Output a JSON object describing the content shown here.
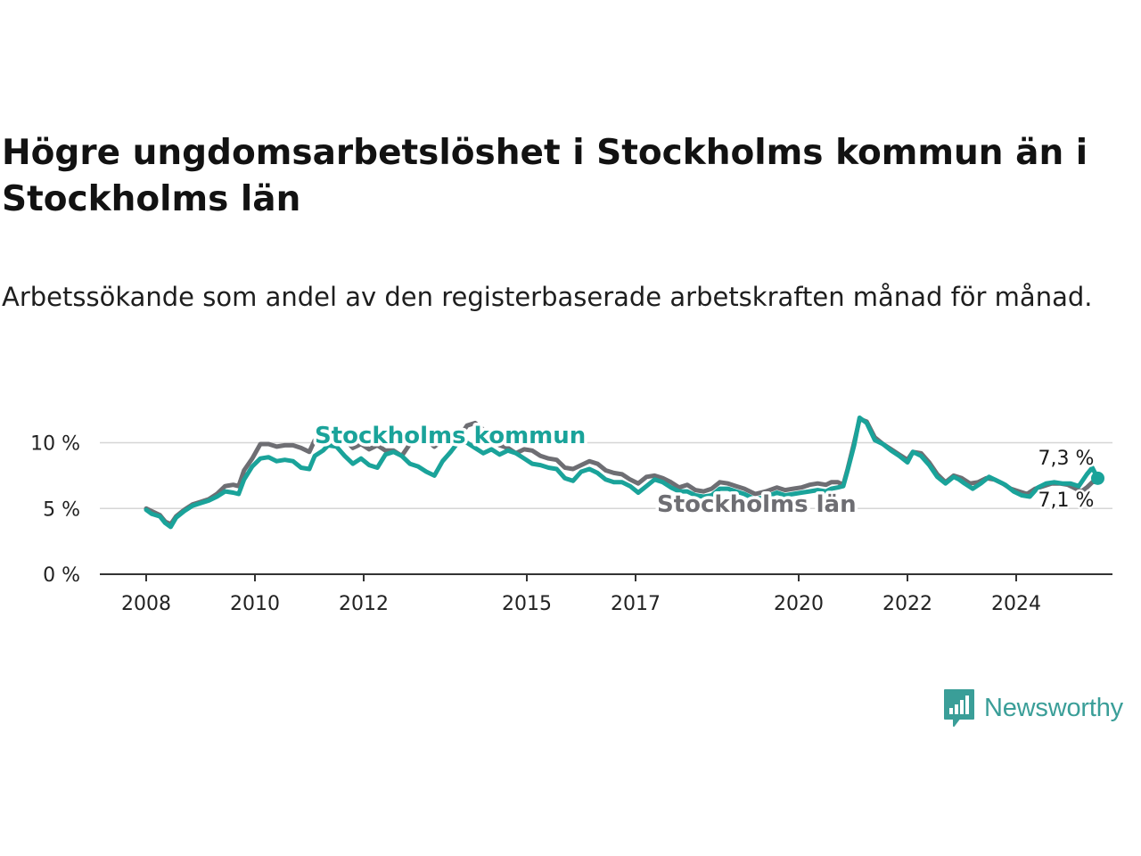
{
  "title": "Högre ungdomsarbetslöshet i Stockholms kommun än i Stockholms län",
  "subtitle": "Arbetssökande som andel av den registerbaserade arbetskraften månad för månad.",
  "brand": {
    "name": "Newsworthy",
    "icon": "newsworthy-bar-chart-icon"
  },
  "chart_data": {
    "type": "line",
    "title": "Högre ungdomsarbetslöshet i Stockholms kommun än i Stockholms län",
    "subtitle": "Arbetssökande som andel av den registerbaserade arbetskraften månad för månad.",
    "xlabel": "",
    "ylabel": "",
    "x_range": [
      2008,
      2025.5
    ],
    "ylim": [
      0,
      12.5
    ],
    "grid": true,
    "x_ticks": [
      {
        "value": 2008,
        "label": "2008"
      },
      {
        "value": 2010,
        "label": "2010"
      },
      {
        "value": 2012,
        "label": "2012"
      },
      {
        "value": 2015,
        "label": "2015"
      },
      {
        "value": 2017,
        "label": "2017"
      },
      {
        "value": 2020,
        "label": "2020"
      },
      {
        "value": 2022,
        "label": "2022"
      },
      {
        "value": 2024,
        "label": "2024"
      }
    ],
    "y_ticks": [
      {
        "value": 0,
        "label": "0 %"
      },
      {
        "value": 5,
        "label": "5 %"
      },
      {
        "value": 10,
        "label": "10 %"
      }
    ],
    "series": [
      {
        "name": "Stockholms län",
        "color": "#6e6e73",
        "last_label": "7,1 %",
        "points": [
          [
            2008.0,
            5.0
          ],
          [
            2008.1,
            4.8
          ],
          [
            2008.25,
            4.5
          ],
          [
            2008.35,
            4.0
          ],
          [
            2008.45,
            3.8
          ],
          [
            2008.55,
            4.4
          ],
          [
            2008.7,
            4.9
          ],
          [
            2008.85,
            5.3
          ],
          [
            2009.0,
            5.5
          ],
          [
            2009.15,
            5.7
          ],
          [
            2009.3,
            6.1
          ],
          [
            2009.45,
            6.7
          ],
          [
            2009.6,
            6.8
          ],
          [
            2009.7,
            6.7
          ],
          [
            2009.8,
            7.9
          ],
          [
            2009.95,
            8.8
          ],
          [
            2010.1,
            9.9
          ],
          [
            2010.25,
            9.9
          ],
          [
            2010.4,
            9.7
          ],
          [
            2010.55,
            9.8
          ],
          [
            2010.7,
            9.8
          ],
          [
            2010.85,
            9.6
          ],
          [
            2011.0,
            9.3
          ],
          [
            2011.1,
            10.2
          ],
          [
            2011.25,
            10.4
          ],
          [
            2011.35,
            10.8
          ],
          [
            2011.5,
            10.8
          ],
          [
            2011.65,
            10.3
          ],
          [
            2011.8,
            9.6
          ],
          [
            2011.95,
            9.9
          ],
          [
            2012.1,
            9.5
          ],
          [
            2012.25,
            9.8
          ],
          [
            2012.4,
            9.4
          ],
          [
            2012.55,
            9.4
          ],
          [
            2012.7,
            9.0
          ],
          [
            2012.85,
            9.9
          ],
          [
            2013.0,
            10.3
          ],
          [
            2013.15,
            10.2
          ],
          [
            2013.3,
            9.7
          ],
          [
            2013.45,
            10.2
          ],
          [
            2013.6,
            10.1
          ],
          [
            2013.75,
            10.4
          ],
          [
            2013.9,
            11.3
          ],
          [
            2014.05,
            11.5
          ],
          [
            2014.2,
            11.0
          ],
          [
            2014.35,
            10.6
          ],
          [
            2014.5,
            9.8
          ],
          [
            2014.65,
            9.6
          ],
          [
            2014.8,
            9.2
          ],
          [
            2014.95,
            9.5
          ],
          [
            2015.1,
            9.4
          ],
          [
            2015.25,
            9.0
          ],
          [
            2015.4,
            8.8
          ],
          [
            2015.55,
            8.7
          ],
          [
            2015.7,
            8.1
          ],
          [
            2015.85,
            8.0
          ],
          [
            2016.0,
            8.3
          ],
          [
            2016.15,
            8.6
          ],
          [
            2016.3,
            8.4
          ],
          [
            2016.45,
            7.9
          ],
          [
            2016.6,
            7.7
          ],
          [
            2016.75,
            7.6
          ],
          [
            2016.9,
            7.2
          ],
          [
            2017.05,
            6.9
          ],
          [
            2017.2,
            7.4
          ],
          [
            2017.35,
            7.5
          ],
          [
            2017.5,
            7.3
          ],
          [
            2017.65,
            7.0
          ],
          [
            2017.8,
            6.6
          ],
          [
            2017.95,
            6.8
          ],
          [
            2018.1,
            6.4
          ],
          [
            2018.25,
            6.3
          ],
          [
            2018.4,
            6.5
          ],
          [
            2018.55,
            7.0
          ],
          [
            2018.7,
            6.9
          ],
          [
            2018.85,
            6.7
          ],
          [
            2019.0,
            6.5
          ],
          [
            2019.2,
            6.1
          ],
          [
            2019.4,
            6.3
          ],
          [
            2019.6,
            6.6
          ],
          [
            2019.75,
            6.4
          ],
          [
            2019.9,
            6.5
          ],
          [
            2020.05,
            6.6
          ],
          [
            2020.2,
            6.8
          ],
          [
            2020.35,
            6.9
          ],
          [
            2020.5,
            6.8
          ],
          [
            2020.6,
            7.0
          ],
          [
            2020.72,
            7.0
          ],
          [
            2020.82,
            6.8
          ],
          [
            2020.9,
            8.0
          ],
          [
            2021.02,
            10.0
          ],
          [
            2021.12,
            11.8
          ],
          [
            2021.25,
            11.6
          ],
          [
            2021.4,
            10.4
          ],
          [
            2021.55,
            9.9
          ],
          [
            2021.7,
            9.5
          ],
          [
            2021.85,
            9.1
          ],
          [
            2022.0,
            8.7
          ],
          [
            2022.1,
            9.3
          ],
          [
            2022.25,
            9.2
          ],
          [
            2022.4,
            8.5
          ],
          [
            2022.55,
            7.6
          ],
          [
            2022.7,
            7.0
          ],
          [
            2022.85,
            7.5
          ],
          [
            2023.0,
            7.3
          ],
          [
            2023.15,
            6.9
          ],
          [
            2023.3,
            7.0
          ],
          [
            2023.45,
            7.3
          ],
          [
            2023.6,
            7.2
          ],
          [
            2023.75,
            6.9
          ],
          [
            2023.9,
            6.5
          ],
          [
            2024.05,
            6.3
          ],
          [
            2024.2,
            6.1
          ],
          [
            2024.35,
            6.5
          ],
          [
            2024.5,
            6.7
          ],
          [
            2024.65,
            6.9
          ],
          [
            2024.8,
            6.9
          ],
          [
            2024.95,
            6.8
          ],
          [
            2025.1,
            6.5
          ],
          [
            2025.2,
            6.3
          ],
          [
            2025.3,
            6.6
          ],
          [
            2025.4,
            7.0
          ],
          [
            2025.5,
            7.1
          ]
        ]
      },
      {
        "name": "Stockholms kommun",
        "color": "#1aa39a",
        "last_label": "7,3 %",
        "points": [
          [
            2008.0,
            4.9
          ],
          [
            2008.1,
            4.6
          ],
          [
            2008.25,
            4.4
          ],
          [
            2008.35,
            3.9
          ],
          [
            2008.45,
            3.6
          ],
          [
            2008.55,
            4.3
          ],
          [
            2008.7,
            4.8
          ],
          [
            2008.85,
            5.2
          ],
          [
            2009.0,
            5.4
          ],
          [
            2009.15,
            5.6
          ],
          [
            2009.3,
            5.9
          ],
          [
            2009.45,
            6.3
          ],
          [
            2009.6,
            6.2
          ],
          [
            2009.7,
            6.1
          ],
          [
            2009.8,
            7.2
          ],
          [
            2009.95,
            8.2
          ],
          [
            2010.1,
            8.8
          ],
          [
            2010.25,
            8.9
          ],
          [
            2010.4,
            8.6
          ],
          [
            2010.55,
            8.7
          ],
          [
            2010.7,
            8.6
          ],
          [
            2010.85,
            8.1
          ],
          [
            2011.0,
            8.0
          ],
          [
            2011.1,
            9.0
          ],
          [
            2011.25,
            9.4
          ],
          [
            2011.35,
            9.8
          ],
          [
            2011.5,
            9.7
          ],
          [
            2011.65,
            9.0
          ],
          [
            2011.8,
            8.4
          ],
          [
            2011.95,
            8.8
          ],
          [
            2012.1,
            8.3
          ],
          [
            2012.25,
            8.1
          ],
          [
            2012.4,
            9.1
          ],
          [
            2012.55,
            9.3
          ],
          [
            2012.7,
            9.0
          ],
          [
            2012.85,
            8.4
          ],
          [
            2013.0,
            8.2
          ],
          [
            2013.15,
            7.8
          ],
          [
            2013.3,
            7.5
          ],
          [
            2013.45,
            8.6
          ],
          [
            2013.6,
            9.3
          ],
          [
            2013.75,
            10.1
          ],
          [
            2013.9,
            10.0
          ],
          [
            2014.05,
            9.6
          ],
          [
            2014.2,
            9.2
          ],
          [
            2014.35,
            9.5
          ],
          [
            2014.5,
            9.1
          ],
          [
            2014.65,
            9.4
          ],
          [
            2014.8,
            9.2
          ],
          [
            2014.95,
            8.8
          ],
          [
            2015.1,
            8.4
          ],
          [
            2015.25,
            8.3
          ],
          [
            2015.4,
            8.1
          ],
          [
            2015.55,
            8.0
          ],
          [
            2015.7,
            7.3
          ],
          [
            2015.85,
            7.1
          ],
          [
            2016.0,
            7.8
          ],
          [
            2016.15,
            8.0
          ],
          [
            2016.3,
            7.7
          ],
          [
            2016.45,
            7.2
          ],
          [
            2016.6,
            7.0
          ],
          [
            2016.75,
            7.0
          ],
          [
            2016.9,
            6.7
          ],
          [
            2017.05,
            6.2
          ],
          [
            2017.2,
            6.7
          ],
          [
            2017.35,
            7.2
          ],
          [
            2017.5,
            7.0
          ],
          [
            2017.65,
            6.6
          ],
          [
            2017.8,
            6.3
          ],
          [
            2017.95,
            6.3
          ],
          [
            2018.1,
            6.0
          ],
          [
            2018.25,
            5.9
          ],
          [
            2018.4,
            6.0
          ],
          [
            2018.55,
            6.5
          ],
          [
            2018.7,
            6.5
          ],
          [
            2018.85,
            6.3
          ],
          [
            2019.0,
            6.1
          ],
          [
            2019.2,
            5.7
          ],
          [
            2019.4,
            5.9
          ],
          [
            2019.6,
            6.2
          ],
          [
            2019.75,
            6.0
          ],
          [
            2019.9,
            6.1
          ],
          [
            2020.05,
            6.2
          ],
          [
            2020.2,
            6.3
          ],
          [
            2020.35,
            6.4
          ],
          [
            2020.5,
            6.3
          ],
          [
            2020.6,
            6.5
          ],
          [
            2020.72,
            6.6
          ],
          [
            2020.82,
            6.7
          ],
          [
            2020.9,
            7.9
          ],
          [
            2021.02,
            9.8
          ],
          [
            2021.12,
            11.9
          ],
          [
            2021.25,
            11.5
          ],
          [
            2021.4,
            10.2
          ],
          [
            2021.55,
            9.9
          ],
          [
            2021.7,
            9.4
          ],
          [
            2021.85,
            9.0
          ],
          [
            2022.0,
            8.5
          ],
          [
            2022.1,
            9.3
          ],
          [
            2022.25,
            9.0
          ],
          [
            2022.4,
            8.3
          ],
          [
            2022.55,
            7.4
          ],
          [
            2022.7,
            6.9
          ],
          [
            2022.85,
            7.4
          ],
          [
            2022.95,
            7.2
          ],
          [
            2023.05,
            6.9
          ],
          [
            2023.2,
            6.5
          ],
          [
            2023.35,
            6.9
          ],
          [
            2023.5,
            7.4
          ],
          [
            2023.65,
            7.1
          ],
          [
            2023.8,
            6.8
          ],
          [
            2023.95,
            6.3
          ],
          [
            2024.1,
            6.0
          ],
          [
            2024.25,
            5.9
          ],
          [
            2024.4,
            6.6
          ],
          [
            2024.55,
            6.9
          ],
          [
            2024.7,
            7.0
          ],
          [
            2024.85,
            6.9
          ],
          [
            2025.0,
            6.9
          ],
          [
            2025.15,
            6.7
          ],
          [
            2025.3,
            7.6
          ],
          [
            2025.4,
            8.1
          ],
          [
            2025.5,
            7.3
          ]
        ]
      }
    ]
  }
}
